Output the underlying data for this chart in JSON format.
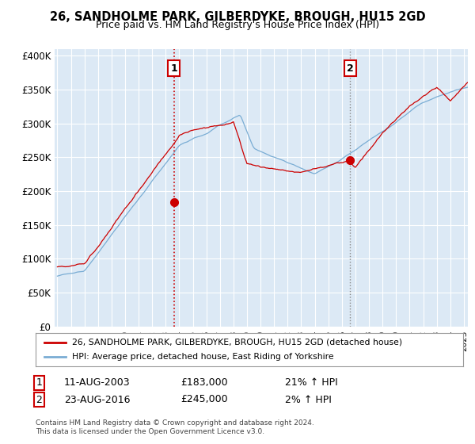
{
  "title": "26, SANDHOLME PARK, GILBERDYKE, BROUGH, HU15 2GD",
  "subtitle": "Price paid vs. HM Land Registry's House Price Index (HPI)",
  "ylabel_ticks": [
    "£0",
    "£50K",
    "£100K",
    "£150K",
    "£200K",
    "£250K",
    "£300K",
    "£350K",
    "£400K"
  ],
  "ylabel_values": [
    0,
    50000,
    100000,
    150000,
    200000,
    250000,
    300000,
    350000,
    400000
  ],
  "ylim": [
    0,
    410000
  ],
  "xlim_start": 1994.8,
  "xlim_end": 2025.3,
  "background_color": "#ffffff",
  "plot_bg_color": "#dce9f5",
  "grid_color": "#ffffff",
  "red_line_color": "#cc0000",
  "blue_line_color": "#7aadd4",
  "t1_year": 2003.62,
  "t1_price": 183000,
  "t2_year": 2016.62,
  "t2_price": 245000,
  "legend_red": "26, SANDHOLME PARK, GILBERDYKE, BROUGH, HU15 2GD (detached house)",
  "legend_blue": "HPI: Average price, detached house, East Riding of Yorkshire",
  "footer": "Contains HM Land Registry data © Crown copyright and database right 2024.\nThis data is licensed under the Open Government Licence v3.0.",
  "table_row1": [
    "1",
    "11-AUG-2003",
    "£183,000",
    "21% ↑ HPI"
  ],
  "table_row2": [
    "2",
    "23-AUG-2016",
    "£245,000",
    "2% ↑ HPI"
  ]
}
